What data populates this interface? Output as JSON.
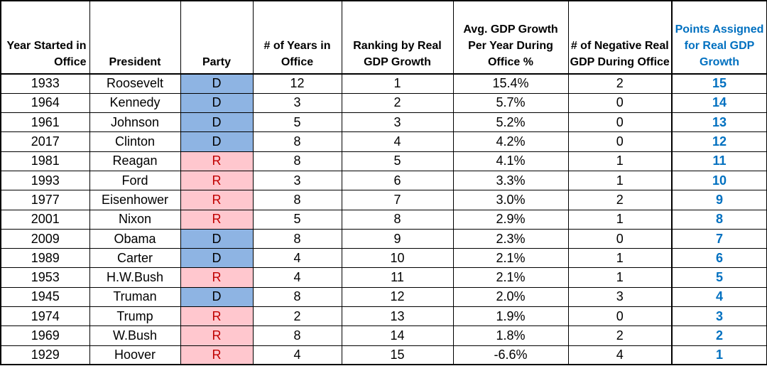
{
  "headers": {
    "year": "Year Started in Office",
    "president": "President",
    "party": "Party",
    "years": "# of Years in Office",
    "ranking": "Ranking by Real GDP Growth",
    "avg_gdp": "Avg. GDP Growth Per Year During Office %",
    "negative": "# of Negative Real GDP During Office",
    "points": "Points Assigned for Real GDP Growth"
  },
  "colors": {
    "democrat": "#8eb4e3",
    "republican": "#ffc7ce",
    "republican_text": "#c00000",
    "points_text": "#0070c0"
  },
  "rows": [
    {
      "year": "1933",
      "president": "Roosevelt",
      "party": "D",
      "years": "12",
      "rank": "1",
      "avg": "15.4%",
      "neg": "2",
      "points": "15"
    },
    {
      "year": "1964",
      "president": "Kennedy",
      "party": "D",
      "years": "3",
      "rank": "2",
      "avg": "5.7%",
      "neg": "0",
      "points": "14"
    },
    {
      "year": "1961",
      "president": "Johnson",
      "party": "D",
      "years": "5",
      "rank": "3",
      "avg": "5.2%",
      "neg": "0",
      "points": "13"
    },
    {
      "year": "2017",
      "president": "Clinton",
      "party": "D",
      "years": "8",
      "rank": "4",
      "avg": "4.2%",
      "neg": "0",
      "points": "12"
    },
    {
      "year": "1981",
      "president": "Reagan",
      "party": "R",
      "years": "8",
      "rank": "5",
      "avg": "4.1%",
      "neg": "1",
      "points": "11"
    },
    {
      "year": "1993",
      "president": "Ford",
      "party": "R",
      "years": "3",
      "rank": "6",
      "avg": "3.3%",
      "neg": "1",
      "points": "10"
    },
    {
      "year": "1977",
      "president": "Eisenhower",
      "party": "R",
      "years": "8",
      "rank": "7",
      "avg": "3.0%",
      "neg": "2",
      "points": "9"
    },
    {
      "year": "2001",
      "president": "Nixon",
      "party": "R",
      "years": "5",
      "rank": "8",
      "avg": "2.9%",
      "neg": "1",
      "points": "8"
    },
    {
      "year": "2009",
      "president": "Obama",
      "party": "D",
      "years": "8",
      "rank": "9",
      "avg": "2.3%",
      "neg": "0",
      "points": "7"
    },
    {
      "year": "1989",
      "president": "Carter",
      "party": "D",
      "years": "4",
      "rank": "10",
      "avg": "2.1%",
      "neg": "1",
      "points": "6"
    },
    {
      "year": "1953",
      "president": "H.W.Bush",
      "party": "R",
      "years": "4",
      "rank": "11",
      "avg": "2.1%",
      "neg": "1",
      "points": "5"
    },
    {
      "year": "1945",
      "president": "Truman",
      "party": "D",
      "years": "8",
      "rank": "12",
      "avg": "2.0%",
      "neg": "3",
      "points": "4"
    },
    {
      "year": "1974",
      "president": "Trump",
      "party": "R",
      "years": "2",
      "rank": "13",
      "avg": "1.9%",
      "neg": "0",
      "points": "3"
    },
    {
      "year": "1969",
      "president": "W.Bush",
      "party": "R",
      "years": "8",
      "rank": "14",
      "avg": "1.8%",
      "neg": "2",
      "points": "2"
    },
    {
      "year": "1929",
      "president": "Hoover",
      "party": "R",
      "years": "4",
      "rank": "15",
      "avg": "-6.6%",
      "neg": "4",
      "points": "1"
    }
  ]
}
